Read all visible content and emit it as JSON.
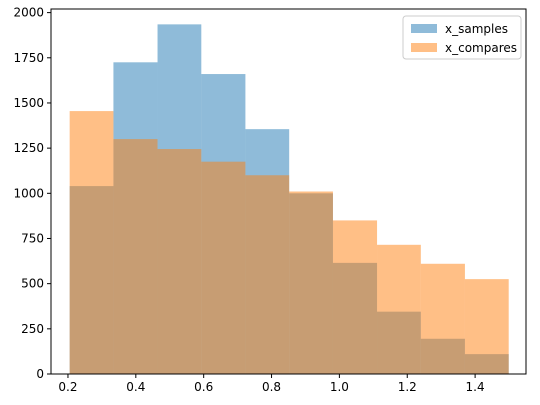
{
  "chart_data": {
    "type": "bar",
    "title": "",
    "xlabel": "",
    "ylabel": "",
    "xlim": [
      0.15,
      1.55
    ],
    "ylim": [
      0,
      2020
    ],
    "grid": false,
    "legend_position": "top-right",
    "x_ticks": [
      0.2,
      0.4,
      0.6,
      0.8,
      1.0,
      1.2,
      1.4
    ],
    "x_tick_labels": [
      "0.2",
      "0.4",
      "0.6",
      "0.8",
      "1.0",
      "1.2",
      "1.4"
    ],
    "y_ticks": [
      0,
      250,
      500,
      750,
      1000,
      1250,
      1500,
      1750,
      2000
    ],
    "y_tick_labels": [
      "0",
      "250",
      "500",
      "750",
      "1000",
      "1250",
      "1500",
      "1750",
      "2000"
    ],
    "bin_edges": [
      0.205,
      0.334,
      0.464,
      0.593,
      0.723,
      0.852,
      0.981,
      1.111,
      1.24,
      1.37,
      1.499
    ],
    "series": [
      {
        "name": "x_samples",
        "color": "#1f77b4",
        "alpha": 0.5,
        "values": [
          1040,
          1725,
          1935,
          1660,
          1355,
          1000,
          615,
          345,
          195,
          110
        ]
      },
      {
        "name": "x_compares",
        "color": "#ff7f0e",
        "alpha": 0.5,
        "values": [
          1455,
          1300,
          1245,
          1175,
          1100,
          1010,
          850,
          715,
          610,
          525
        ]
      }
    ]
  }
}
